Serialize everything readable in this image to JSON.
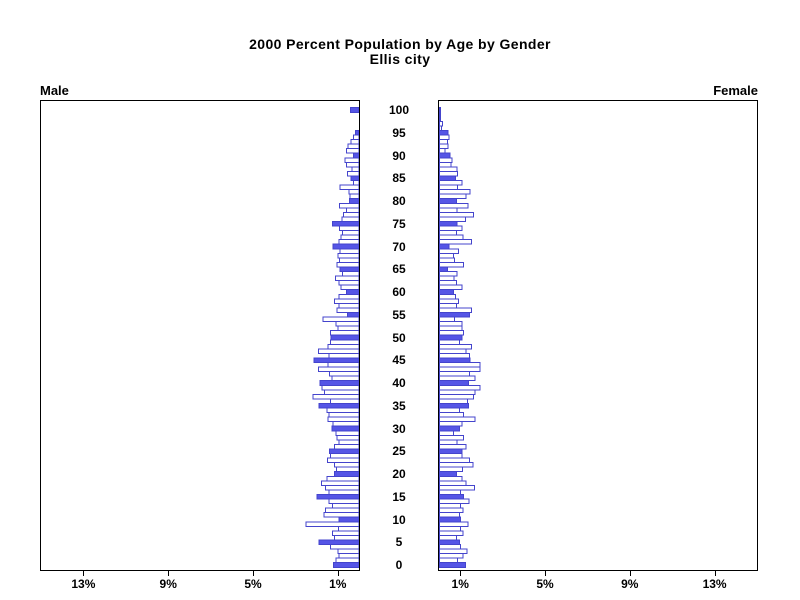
{
  "panels": {
    "male_label": "Male",
    "female_label": "Female"
  },
  "axes": {
    "age_tick_labels": [
      0,
      5,
      10,
      15,
      20,
      25,
      30,
      35,
      40,
      45,
      50,
      55,
      60,
      65,
      70,
      75,
      80,
      85,
      90,
      95,
      100
    ],
    "male_pct_tick_labels": [
      "13%",
      "9%",
      "5%",
      "1%"
    ],
    "male_pct_tick_values": [
      13,
      9,
      5,
      1
    ],
    "female_pct_tick_labels": [
      "1%",
      "5%",
      "9%",
      "13%"
    ],
    "female_pct_tick_values": [
      1,
      5,
      9,
      13
    ],
    "pct_axis_max": 15
  },
  "colors": {
    "bar_fill_quinquennial": "#5555e6",
    "bar_fill_other": "#ffffff",
    "bar_outline": "#4444cc",
    "frame": "#000000",
    "text": "#000000"
  },
  "chart_data": {
    "type": "bar",
    "variant": "population-pyramid",
    "title": "2000 Percent Population by Age by Gender",
    "subtitle": "Ellis city",
    "unit": "percent of total population",
    "age_min": 0,
    "age_max": 100,
    "bar_width_years": 1,
    "highlight_rule": "bars for ages divisible by 5 are filled blue; other ages are white with blue outline",
    "x_axis": {
      "ticks_pct": [
        1,
        5,
        9,
        13
      ],
      "max_pct": 15,
      "male_side": "left-reversed",
      "female_side": "right"
    },
    "grid": false,
    "series": [
      {
        "name": "Male",
        "values": [
          1.2,
          1.08,
          0.95,
          1.0,
          1.34,
          1.88,
          1.15,
          1.26,
          0.97,
          2.49,
          0.95,
          1.65,
          1.57,
          1.26,
          1.42,
          1.97,
          1.42,
          1.57,
          1.77,
          1.51,
          1.15,
          1.05,
          1.15,
          1.49,
          1.35,
          1.38,
          1.15,
          0.95,
          1.03,
          1.08,
          1.28,
          1.23,
          1.46,
          1.42,
          1.51,
          1.88,
          1.35,
          2.18,
          1.62,
          1.74,
          1.85,
          1.28,
          1.38,
          1.92,
          1.46,
          2.12,
          1.42,
          1.92,
          1.46,
          1.35,
          1.31,
          1.35,
          1.0,
          1.08,
          1.69,
          0.54,
          1.03,
          0.95,
          1.15,
          0.95,
          0.6,
          0.85,
          0.95,
          1.11,
          0.77,
          0.89,
          1.03,
          0.92,
          1.0,
          0.89,
          1.23,
          0.95,
          0.85,
          0.77,
          0.92,
          1.26,
          0.8,
          0.72,
          0.58,
          0.92,
          0.45,
          0.42,
          0.46,
          0.89,
          0.26,
          0.38,
          0.55,
          0.34,
          0.58,
          0.65,
          0.26,
          0.6,
          0.52,
          0.37,
          0.26,
          0.17,
          0,
          0,
          0,
          0,
          0.4
        ]
      },
      {
        "name": "Female",
        "values": [
          1.22,
          0.85,
          1.1,
          1.3,
          1.0,
          0.95,
          0.8,
          1.1,
          1.0,
          1.35,
          0.98,
          0.95,
          1.1,
          1.0,
          1.4,
          1.14,
          1.0,
          1.65,
          1.26,
          1.06,
          0.8,
          1.08,
          1.57,
          1.42,
          1.06,
          1.06,
          1.26,
          0.83,
          1.14,
          0.65,
          0.95,
          1.06,
          1.68,
          1.14,
          0.95,
          1.37,
          1.32,
          1.6,
          1.68,
          1.9,
          1.37,
          1.68,
          1.42,
          1.9,
          1.9,
          1.45,
          1.42,
          1.26,
          1.52,
          0.95,
          1.06,
          1.14,
          1.06,
          1.06,
          0.7,
          1.42,
          1.52,
          0.8,
          0.9,
          0.75,
          0.65,
          1.06,
          0.8,
          0.68,
          0.83,
          0.37,
          1.14,
          0.7,
          0.65,
          0.9,
          0.45,
          1.52,
          1.1,
          0.8,
          1.06,
          0.83,
          1.22,
          1.6,
          0.83,
          1.34,
          0.8,
          1.26,
          1.45,
          0.86,
          1.06,
          0.75,
          0.86,
          0.83,
          0.55,
          0.6,
          0.49,
          0.25,
          0.4,
          0.37,
          0.45,
          0.4,
          0.1,
          0.15,
          0.05,
          0.05,
          0.05
        ]
      }
    ]
  }
}
